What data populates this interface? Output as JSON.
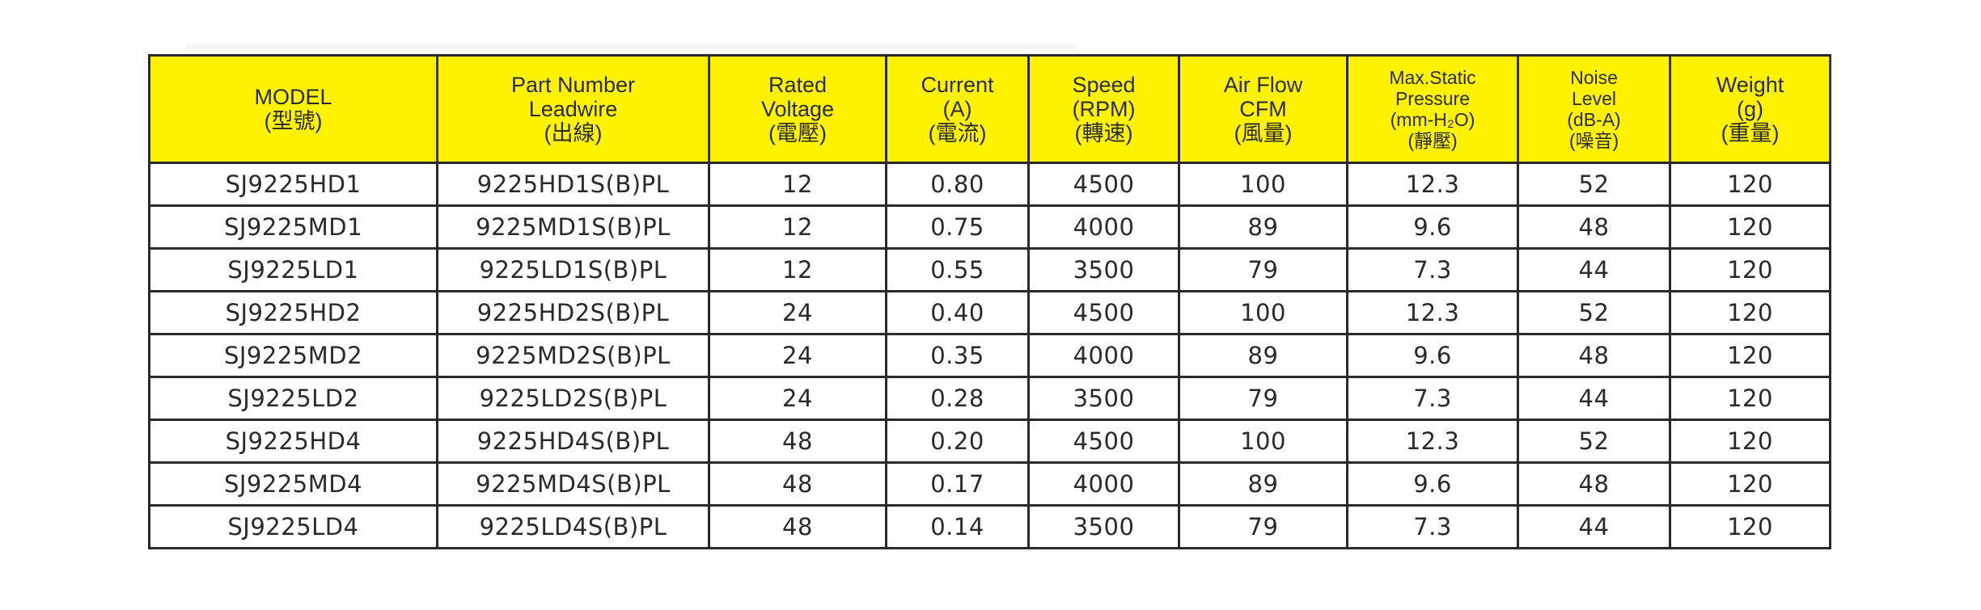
{
  "colors": {
    "header_bg": "#FFF200",
    "border": "#2a2a2a"
  },
  "headers": [
    {
      "lines": [
        "MODEL",
        "(型號)"
      ]
    },
    {
      "lines": [
        "Part Number",
        "Leadwire",
        "(出線)"
      ]
    },
    {
      "lines": [
        "Rated",
        "Voltage",
        "(電壓)"
      ]
    },
    {
      "lines": [
        "Current",
        "(A)",
        "(電流)"
      ]
    },
    {
      "lines": [
        "Speed",
        "(RPM)",
        "(轉速)"
      ]
    },
    {
      "lines": [
        "Air Flow",
        "CFM",
        "(風量)"
      ]
    },
    {
      "lines": [
        "Max.Static",
        "Pressure",
        "(mm-H₂O)",
        "(靜壓)"
      ]
    },
    {
      "lines": [
        "Noise",
        "Level",
        "(dB-A)",
        "(噪音)"
      ]
    },
    {
      "lines": [
        "Weight",
        "(g)",
        "(重量)"
      ]
    }
  ],
  "rows": [
    [
      "SJ9225HD1",
      "9225HD1S(B)PL",
      "12",
      "0.80",
      "4500",
      "100",
      "12.3",
      "52",
      "120"
    ],
    [
      "SJ9225MD1",
      "9225MD1S(B)PL",
      "12",
      "0.75",
      "4000",
      "89",
      "9.6",
      "48",
      "120"
    ],
    [
      "SJ9225LD1",
      "9225LD1S(B)PL",
      "12",
      "0.55",
      "3500",
      "79",
      "7.3",
      "44",
      "120"
    ],
    [
      "SJ9225HD2",
      "9225HD2S(B)PL",
      "24",
      "0.40",
      "4500",
      "100",
      "12.3",
      "52",
      "120"
    ],
    [
      "SJ9225MD2",
      "9225MD2S(B)PL",
      "24",
      "0.35",
      "4000",
      "89",
      "9.6",
      "48",
      "120"
    ],
    [
      "SJ9225LD2",
      "9225LD2S(B)PL",
      "24",
      "0.28",
      "3500",
      "79",
      "7.3",
      "44",
      "120"
    ],
    [
      "SJ9225HD4",
      "9225HD4S(B)PL",
      "48",
      "0.20",
      "4500",
      "100",
      "12.3",
      "52",
      "120"
    ],
    [
      "SJ9225MD4",
      "9225MD4S(B)PL",
      "48",
      "0.17",
      "4000",
      "89",
      "9.6",
      "48",
      "120"
    ],
    [
      "SJ9225LD4",
      "9225LD4S(B)PL",
      "48",
      "0.14",
      "3500",
      "79",
      "7.3",
      "44",
      "120"
    ]
  ]
}
